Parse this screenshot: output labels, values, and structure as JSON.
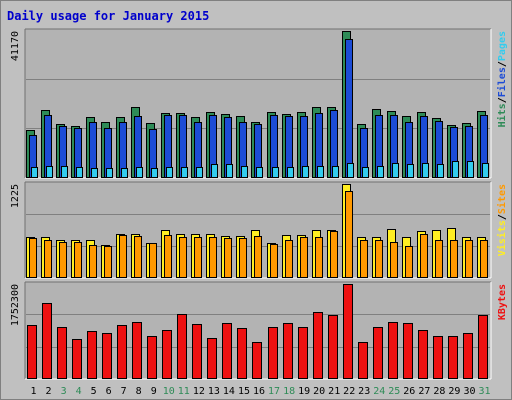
{
  "title": "Daily usage for January 2015",
  "colors": {
    "background": "#c0c0c0",
    "plot": "#b3b3b3",
    "hits": "#2e8b57",
    "files": "#1c4cd6",
    "pages": "#33ccee",
    "visits": "#ffee22",
    "sites": "#ff9900",
    "kbytes": "#ee1111",
    "title": "#0000cc",
    "day": "#000000",
    "weekend_day": "#2e8b57"
  },
  "chart_data": [
    {
      "type": "bar",
      "panel": "hits-files-pages",
      "ymax_label": "41170",
      "ymax": 41170,
      "legend": [
        {
          "text": "Hits",
          "key": "hits"
        },
        {
          "text": "Files",
          "key": "files"
        },
        {
          "text": "Pages",
          "key": "pages"
        }
      ],
      "categories": [
        "1",
        "2",
        "3",
        "4",
        "5",
        "6",
        "7",
        "8",
        "9",
        "10",
        "11",
        "12",
        "13",
        "14",
        "15",
        "16",
        "17",
        "18",
        "19",
        "20",
        "21",
        "22",
        "23",
        "24",
        "25",
        "26",
        "27",
        "28",
        "29",
        "30",
        "31"
      ],
      "series": [
        {
          "name": "Hits",
          "key": "hits",
          "values": [
            13500,
            19000,
            15000,
            14700,
            17200,
            15800,
            17000,
            20000,
            15500,
            18200,
            18200,
            17000,
            18500,
            18000,
            17300,
            15700,
            18500,
            18000,
            18600,
            19800,
            20000,
            41170,
            15000,
            19300,
            18900,
            17500,
            18500,
            16800,
            14800,
            15300,
            18800
          ]
        },
        {
          "name": "Files",
          "key": "files",
          "values": [
            12000,
            17700,
            14600,
            14000,
            15800,
            14000,
            15700,
            17500,
            13700,
            17600,
            17600,
            15800,
            17700,
            17000,
            15700,
            15000,
            17600,
            17500,
            17400,
            18200,
            19000,
            39000,
            14000,
            17600,
            17600,
            15700,
            17400,
            16000,
            14200,
            14500,
            17600
          ]
        },
        {
          "name": "Pages",
          "key": "pages",
          "values": [
            3000,
            3500,
            3300,
            3000,
            2800,
            2700,
            2800,
            3000,
            2700,
            3000,
            3200,
            3000,
            3900,
            3900,
            3300,
            3200,
            3200,
            3200,
            3400,
            3500,
            3500,
            4200,
            3200,
            3500,
            4300,
            3900,
            4300,
            4000,
            4900,
            4800,
            4200
          ]
        }
      ]
    },
    {
      "type": "bar",
      "panel": "visits-sites",
      "ymax_label": "1225",
      "ymax": 1225,
      "legend": [
        {
          "text": "Visits",
          "key": "visits"
        },
        {
          "text": "Sites",
          "key": "sites"
        }
      ],
      "categories": [
        "1",
        "2",
        "3",
        "4",
        "5",
        "6",
        "7",
        "8",
        "9",
        "10",
        "11",
        "12",
        "13",
        "14",
        "15",
        "16",
        "17",
        "18",
        "19",
        "20",
        "21",
        "22",
        "23",
        "24",
        "25",
        "26",
        "27",
        "28",
        "29",
        "30",
        "31"
      ],
      "series": [
        {
          "name": "Visits",
          "key": "visits",
          "values": [
            540,
            540,
            490,
            490,
            490,
            430,
            570,
            570,
            460,
            620,
            570,
            570,
            570,
            550,
            550,
            620,
            460,
            560,
            560,
            630,
            630,
            1225,
            530,
            530,
            640,
            530,
            610,
            630,
            650,
            530,
            530
          ]
        },
        {
          "name": "Sites",
          "key": "sites",
          "values": [
            520,
            490,
            470,
            470,
            430,
            420,
            560,
            550,
            450,
            560,
            540,
            540,
            530,
            520,
            520,
            550,
            440,
            500,
            530,
            530,
            610,
            1140,
            500,
            500,
            470,
            420,
            570,
            500,
            500,
            500,
            500
          ]
        }
      ]
    },
    {
      "type": "bar",
      "panel": "kbytes",
      "ymax_label": "1752300",
      "ymax": 1752300,
      "legend": [
        {
          "text": "KBytes",
          "key": "kbytes"
        }
      ],
      "categories": [
        "1",
        "2",
        "3",
        "4",
        "5",
        "6",
        "7",
        "8",
        "9",
        "10",
        "11",
        "12",
        "13",
        "14",
        "15",
        "16",
        "17",
        "18",
        "19",
        "20",
        "21",
        "22",
        "23",
        "24",
        "25",
        "26",
        "27",
        "28",
        "29",
        "30",
        "31"
      ],
      "series": [
        {
          "name": "KBytes",
          "key": "kbytes",
          "values": [
            1000000,
            1400000,
            950000,
            740000,
            890000,
            850000,
            990000,
            1060000,
            800000,
            910000,
            1200000,
            1020000,
            750000,
            1040000,
            940000,
            680000,
            950000,
            1030000,
            960000,
            1230000,
            1180000,
            1752300,
            680000,
            950000,
            1050000,
            1040000,
            900000,
            800000,
            800000,
            850000,
            1180000
          ]
        }
      ]
    }
  ],
  "weekend_days": [
    "3",
    "4",
    "10",
    "11",
    "17",
    "18",
    "24",
    "25",
    "31"
  ]
}
